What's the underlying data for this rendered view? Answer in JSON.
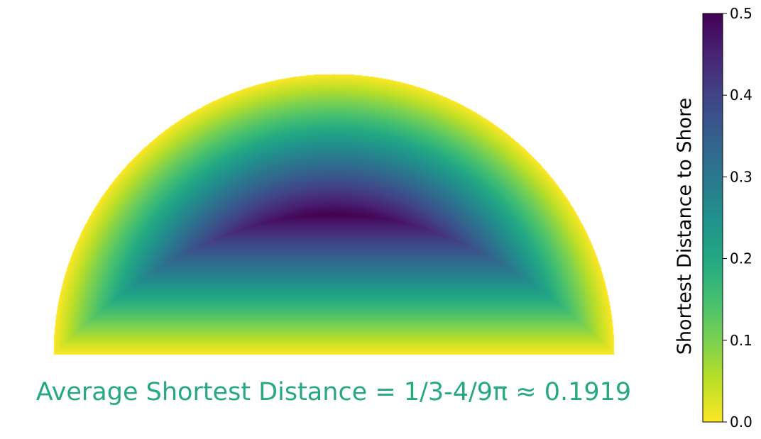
{
  "chart_data": {
    "type": "heatmap",
    "description_region": "half-disk of radius 1",
    "value_formula": "min(1 - sqrt(x^2 + y^2), y)",
    "x_range": [
      -1,
      1
    ],
    "y_range": [
      0,
      1
    ],
    "colormap": "viridis_r",
    "annotation": "Average Shortest Distance = 1/3-4/9π ≈ 0.1919",
    "annotation_color": "#25a983",
    "colorbar": {
      "label": "Shortest Distance to Shore",
      "vmin": 0.0,
      "vmax": 0.5,
      "ticks": [
        0.0,
        0.1,
        0.2,
        0.3,
        0.4,
        0.5
      ],
      "tick_labels": [
        "0.0",
        "0.1",
        "0.2",
        "0.3",
        "0.4",
        "0.5"
      ]
    },
    "axes_visible": false,
    "grid": false
  }
}
